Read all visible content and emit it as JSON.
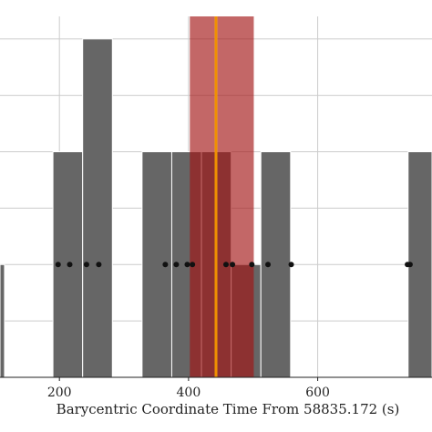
{
  "chart_data": {
    "type": "bar",
    "title": "",
    "xlabel": "Barycentric Coordinate Time From 58835.172 (s)",
    "ylabel": "",
    "xlim": [
      108,
      777
    ],
    "ylim": [
      0,
      3.2
    ],
    "xticks": [
      200,
      400,
      600
    ],
    "grid": true,
    "bars": [
      {
        "x0": 90,
        "x1": 115,
        "value": 1
      },
      {
        "x0": 190,
        "x1": 236,
        "value": 2
      },
      {
        "x0": 236,
        "x1": 282,
        "value": 3
      },
      {
        "x0": 328,
        "x1": 374,
        "value": 2
      },
      {
        "x0": 374,
        "x1": 420,
        "value": 2
      },
      {
        "x0": 420,
        "x1": 466,
        "value": 2
      },
      {
        "x0": 466,
        "x1": 512,
        "value": 1
      },
      {
        "x0": 512,
        "x1": 558,
        "value": 2
      },
      {
        "x0": 740,
        "x1": 790,
        "value": 2
      }
    ],
    "event_points": {
      "y": 1,
      "x": [
        198,
        216,
        242,
        261,
        364,
        381,
        398,
        406,
        458,
        468,
        498,
        523,
        559,
        739,
        743
      ]
    },
    "bands": [
      {
        "x0": 402,
        "x1": 501,
        "color": "#a31515",
        "opacity": 0.65
      }
    ],
    "lines": [
      {
        "x": 442.5,
        "width_x": 4,
        "color": "#ffb000"
      },
      {
        "x": 442.5,
        "width_x": 1.4,
        "color": "#e07000"
      }
    ],
    "colors": {
      "bar": "#666666",
      "bar_edge": "#ffffff",
      "points": "#111111",
      "grid": "#cccccc",
      "axis": "#222222"
    }
  }
}
